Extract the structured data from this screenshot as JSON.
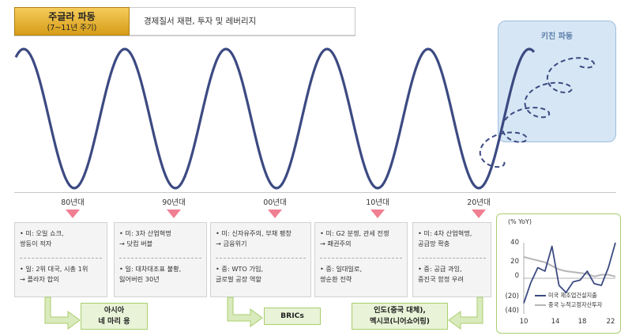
{
  "header": {
    "title": "주글라 파동",
    "title_sub": "(7~11년 주기)",
    "subtitle": "경제질서 재편, 투자 및 레버리지"
  },
  "kitchin": {
    "label": "키친 파동"
  },
  "decades": [
    "80년대",
    "90년대",
    "00년대",
    "10년대",
    "20년대"
  ],
  "events": [
    {
      "us": "• 미: 오일 쇼크,\n   쌍둥이 적자",
      "other": "• 일: 2위 대국, 시총 1위\n   → 플라자 합의"
    },
    {
      "us": "• 미: 3차 산업혁명\n   → 닷컴 버블",
      "other": "• 일: 대차대조표 불황,\n   잃어버린 30년"
    },
    {
      "us": "• 미: 신자유주의, 부채 팽창\n   → 금융위기",
      "other": "• 중: WTO 가입,\n   글로벌 공장 역할"
    },
    {
      "us": "• 미: G2 분쟁, 관세 전쟁\n   → 패권주의",
      "other": "• 중: 일대일로,\n   쌍순환 전략"
    },
    {
      "us": "• 미: 4차 산업혁명,\n   공급망 확충",
      "other": "• 중: 공급 과잉,\n   중진국 함정 우려"
    }
  ],
  "results": [
    "아시아\n네 마리 용",
    "BRICs",
    "인도(중국 대체),\n멕시코(니어쇼어링)"
  ],
  "colors": {
    "wave": "#3c4a82",
    "accent": "#d69c18",
    "marker": "#f07f92",
    "green": "#a9ce6e"
  },
  "mini_chart": {
    "unit_label": "(% YoY)",
    "yticks": [
      "40",
      "20",
      "0",
      "(20)",
      "(40)"
    ],
    "xticks": [
      "10",
      "14",
      "18",
      "22"
    ],
    "legend": [
      "미국 제조업건설지출",
      "중국 누적고정자산투자"
    ]
  },
  "chart_data": {
    "type": "line",
    "x": [
      2010,
      2011,
      2012,
      2013,
      2014,
      2015,
      2016,
      2017,
      2018,
      2019,
      2020,
      2021,
      2022,
      2023
    ],
    "series": [
      {
        "name": "미국 제조업건설지출",
        "color": "#3c4a82",
        "values": [
          -28,
          -5,
          12,
          8,
          36,
          -8,
          -16,
          -4,
          -2,
          8,
          -6,
          -8,
          12,
          40
        ]
      },
      {
        "name": "중국 누적고정자산투자",
        "color": "#b5b5b5",
        "values": [
          24,
          22,
          20,
          18,
          14,
          10,
          8,
          7,
          6,
          5,
          2,
          4,
          4,
          2
        ]
      }
    ],
    "ylim": [
      -40,
      40
    ],
    "xlim": [
      2010,
      2023
    ]
  }
}
